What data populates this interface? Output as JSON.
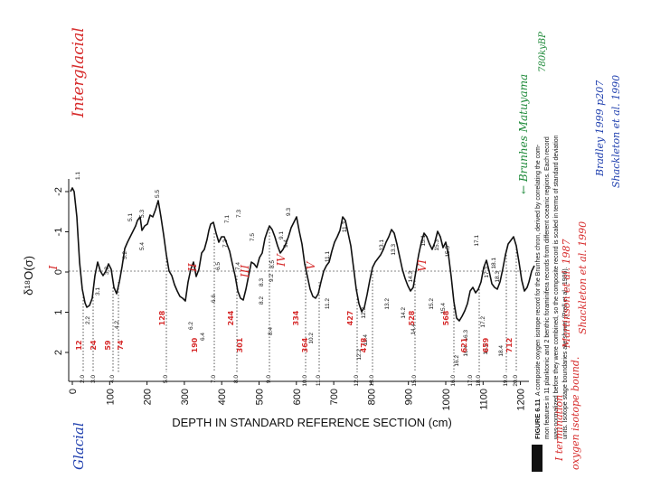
{
  "axis_x_title": "DEPTH IN STANDARD REFERENCE SECTION (cm)",
  "axis_y_title": "δ¹⁸O(σ)",
  "x_ticks": [
    "0",
    "100",
    "200",
    "300",
    "400",
    "500",
    "600",
    "700",
    "800",
    "900",
    "1000",
    "1100",
    "1200"
  ],
  "y_ticks": [
    "-2",
    "-1",
    "0",
    "1",
    "2"
  ],
  "stage_labels": {
    "s1.1": "1.1",
    "s2.0": "2.0",
    "s2.2": "2.2",
    "s3.0": "3.0",
    "s3.1": "3.1",
    "s3.3": "3.3",
    "s4.0": "4.0",
    "s4.2": "4.2",
    "s5.0": "5.0",
    "s5.1": "5.1",
    "s5.2": "5.2",
    "s5.3": "5.3",
    "s5.4": "5.4",
    "s5.5": "5.5",
    "s6.2": "6.2",
    "s6.4": "6.4",
    "s6.5": "6.5",
    "s6.6": "6.6",
    "s7.0": "7.0",
    "s7.1": "7.1",
    "s7.2": "7.2",
    "s7.3": "7.3",
    "s7.4": "7.4",
    "s7.5": "7.5",
    "s8.0": "8.0",
    "s8.2": "8.2",
    "s8.3": "8.3",
    "s8.4": "8.4",
    "s8.5": "8.5",
    "s9.0": "9.0",
    "s9.1": "9.1",
    "s9.2": "9.2",
    "s9.3": "9.3",
    "s9.4": "9.4",
    "s10.0": "10.0",
    "s10.2": "10.2",
    "s11.0": "11.0",
    "s11.1": "11.1",
    "s11.2": "11.2",
    "s11.3": "11.3",
    "s12.0": "12.0",
    "s12.2": "12.2",
    "s12.3": "12.3",
    "s12.4": "12.4",
    "s13.0": "13.0",
    "s13.1": "13.1",
    "s13.2": "13.2",
    "s13.3": "13.3",
    "s14.2": "14.2",
    "s14.3": "14.3",
    "s14.4": "14.4",
    "s15.0": "15.0",
    "s15.1": "15.1",
    "s15.2": "15.2",
    "s15.3": "15.3",
    "s15.4": "15.4",
    "s15.5": "15.5",
    "s16.0": "16.0",
    "s16.2": "16.2",
    "s16.3": "16.3",
    "s16.4": "16.4",
    "s17.0": "17.0",
    "s17.1": "17.1",
    "s17.2": "17.2",
    "s17.3": "17.3",
    "s18.0": "18.0",
    "s18.1": "18.1",
    "s18.2": "18.2",
    "s18.3": "18.3",
    "s18.4": "18.4",
    "s19.0": "19.0",
    "s20.0": "20.0"
  },
  "caption": {
    "label": "FIGURE 6.11",
    "line1": "A composite oxygen isotope record for the Brunhes chron, derived by correlating the com-",
    "line2": "mon features in 11 planktonic and 2 benthic foraminifera records from different oceanic regions. Each record",
    "line3": "was normalized before they were combined, so the composite record is scaled in terms of standard deviation",
    "line4": "units. Isotope stage boundaries are shown (Prell et al., 1986)."
  },
  "annotations": {
    "interglacial": "Interglacial",
    "glacial": "Glacial",
    "brunhes": "← Brunhes Matuyama",
    "brunhes_age": "780kyBP",
    "terminations": "I termination",
    "oxygen": "oxygen isotope bound.",
    "martinson": "Martinson et al. 1987",
    "shackleton": "Shackleton et al. 1990",
    "bradley": "Bradley 1999 p207",
    "shackleton2": "Shackleton et al. 1990",
    "term_labels": [
      "I",
      "II",
      "III",
      "IV",
      "V",
      "VI"
    ],
    "ages": [
      "12",
      "24",
      "59",
      "74",
      "128",
      "190",
      "244",
      "301",
      "334",
      "364",
      "427",
      "478",
      "528",
      "568",
      "621",
      "659",
      "712"
    ]
  }
}
